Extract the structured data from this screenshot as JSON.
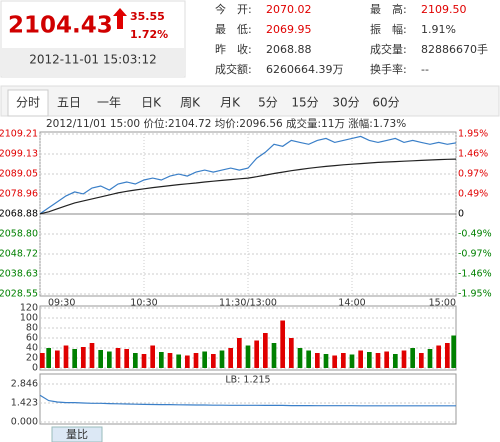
{
  "quote": {
    "price": "2104.43",
    "change": "35.55",
    "change_pct": "1.72%",
    "time": "2012-11-01 15:03:12",
    "stats": [
      {
        "label": "今　开:",
        "value": "2070.02",
        "color": "#e00000"
      },
      {
        "label": "最　高:",
        "value": "2109.50",
        "color": "#e00000"
      },
      {
        "label": "最　低:",
        "value": "2069.95",
        "color": "#e00000"
      },
      {
        "label": "振　幅:",
        "value": "1.91%",
        "color": "#333333"
      },
      {
        "label": "昨　收:",
        "value": "2068.88",
        "color": "#333333"
      },
      {
        "label": "成交量:",
        "value": "82886670手",
        "color": "#333333"
      },
      {
        "label": "成交额:",
        "value": "6260664.39万",
        "color": "#333333"
      },
      {
        "label": "换手率:",
        "value": "--",
        "color": "#333333"
      }
    ]
  },
  "tabs": [
    "分时",
    "五日",
    "一年",
    "日K",
    "周K",
    "月K",
    "5分",
    "15分",
    "30分",
    "60分"
  ],
  "info": "2012/11/01 15:00  价位:2104.72  均价:2096.56  成交量:11万  涨幅:1.73%",
  "bottom_tab": "量比",
  "chart_data": [
    {
      "type": "line",
      "reference": 2068.88,
      "x": [
        0,
        5,
        10,
        15,
        20,
        25,
        30,
        35,
        40,
        45,
        50,
        55,
        60,
        65,
        70,
        75,
        80,
        85,
        90,
        95,
        100,
        105,
        110,
        115,
        120,
        125,
        130,
        135,
        140,
        145,
        150,
        155,
        160,
        165,
        170,
        175,
        180,
        185,
        190,
        195,
        200,
        205,
        210,
        215,
        220,
        225,
        230,
        235,
        240
      ],
      "xlim": [
        0,
        240
      ],
      "xticks": [
        {
          "value": 0,
          "label": "09:30"
        },
        {
          "value": 60,
          "label": "10:30"
        },
        {
          "value": 120,
          "label": "11:30/13:00"
        },
        {
          "value": 180,
          "label": "14:00"
        },
        {
          "value": 240,
          "label": "15:00"
        }
      ],
      "ylim": [
        2028.55,
        2109.21
      ],
      "yticks": [
        2109.21,
        2099.13,
        2089.05,
        2078.96,
        2068.88,
        {
          "value": 2058.8,
          "label": "2058.80"
        },
        2048.72,
        2038.63,
        2028.55
      ],
      "y2lim": [
        -1.95,
        1.95
      ],
      "y2ticks": [
        {
          "value": 1.95,
          "label": "1.95%"
        },
        {
          "value": 1.46,
          "label": "1.46%"
        },
        {
          "value": 0.97,
          "label": "0.97%"
        },
        {
          "value": 0.49,
          "label": "0.49%"
        },
        0,
        {
          "value": -0.49,
          "label": "-0.49%"
        },
        {
          "value": -0.97,
          "label": "-0.97%"
        },
        {
          "value": -1.46,
          "label": "-1.46%"
        },
        {
          "value": -1.95,
          "label": "-1.95%"
        }
      ],
      "series": [
        {
          "color": "#3a7fc8",
          "values": [
            2069,
            2072,
            2075,
            2078,
            2080,
            2079,
            2082,
            2083,
            2081,
            2084,
            2085,
            2084,
            2086,
            2087,
            2086,
            2088,
            2089,
            2088,
            2090,
            2091,
            2090,
            2091,
            2092,
            2091,
            2092,
            2097,
            2100,
            2104,
            2103,
            2106,
            2105,
            2104,
            2106,
            2107,
            2105,
            2106,
            2107,
            2108,
            2106,
            2105,
            2106,
            2107,
            2105,
            2106,
            2105,
            2104,
            2105,
            2104,
            2104.72
          ]
        },
        {
          "color": "#222222",
          "values": [
            2069,
            2070,
            2071.5,
            2073,
            2074.5,
            2075.5,
            2076.5,
            2077.5,
            2078.5,
            2079.5,
            2080.3,
            2081,
            2081.6,
            2082.2,
            2082.7,
            2083.2,
            2083.7,
            2084.1,
            2084.5,
            2085,
            2085.4,
            2085.8,
            2086.2,
            2086.6,
            2087,
            2087.7,
            2088.5,
            2089.3,
            2090,
            2090.7,
            2091.3,
            2091.9,
            2092.4,
            2092.9,
            2093.3,
            2093.7,
            2094,
            2094.3,
            2094.6,
            2094.9,
            2095.1,
            2095.3,
            2095.5,
            2095.7,
            2095.9,
            2096.1,
            2096.3,
            2096.45,
            2096.56
          ]
        }
      ]
    },
    {
      "type": "bar",
      "x": [
        0,
        5,
        10,
        15,
        20,
        25,
        30,
        35,
        40,
        45,
        50,
        55,
        60,
        65,
        70,
        75,
        80,
        85,
        90,
        95,
        100,
        105,
        110,
        115,
        120,
        125,
        130,
        135,
        140,
        145,
        150,
        155,
        160,
        165,
        170,
        175,
        180,
        185,
        190,
        195,
        200,
        205,
        210,
        215,
        220,
        225,
        230,
        235,
        240
      ],
      "xlim": [
        0,
        240
      ],
      "ylim": [
        0,
        120
      ],
      "yticks": [
        0,
        20,
        40,
        60,
        80,
        100,
        120
      ],
      "values": [
        30,
        40,
        35,
        45,
        38,
        42,
        50,
        36,
        33,
        40,
        38,
        30,
        28,
        45,
        32,
        30,
        27,
        25,
        30,
        33,
        28,
        35,
        40,
        60,
        45,
        55,
        70,
        50,
        95,
        60,
        40,
        35,
        30,
        28,
        25,
        30,
        27,
        35,
        32,
        30,
        33,
        28,
        35,
        40,
        30,
        38,
        45,
        50,
        65
      ],
      "colors": [
        "#e00000",
        "#008000",
        "#e00000",
        "#e00000",
        "#008000",
        "#e00000",
        "#e00000",
        "#008000",
        "#008000",
        "#e00000",
        "#e00000",
        "#008000",
        "#e00000",
        "#e00000",
        "#008000",
        "#e00000",
        "#008000",
        "#e00000",
        "#e00000",
        "#008000",
        "#e00000",
        "#008000",
        "#e00000",
        "#e00000",
        "#008000",
        "#e00000",
        "#e00000",
        "#008000",
        "#e00000",
        "#e00000",
        "#008000",
        "#008000",
        "#e00000",
        "#008000",
        "#e00000",
        "#e00000",
        "#008000",
        "#e00000",
        "#008000",
        "#e00000",
        "#e00000",
        "#008000",
        "#e00000",
        "#008000",
        "#e00000",
        "#008000",
        "#e00000",
        "#e00000",
        "#008000"
      ]
    },
    {
      "type": "line",
      "title": "LB: 1.215",
      "x": [
        0,
        5,
        10,
        15,
        20,
        25,
        30,
        35,
        40,
        45,
        50,
        55,
        60,
        65,
        70,
        75,
        80,
        85,
        90,
        95,
        100,
        105,
        110,
        115,
        120,
        125,
        130,
        135,
        140,
        145,
        150,
        155,
        160,
        165,
        170,
        175,
        180,
        185,
        190,
        195,
        200,
        205,
        210,
        215,
        220,
        225,
        230,
        235,
        240
      ],
      "xlim": [
        0,
        240
      ],
      "ylim": [
        0,
        2.846
      ],
      "yticks": [
        2.846,
        1.423,
        {
          "value": 0,
          "label": "0.000"
        }
      ],
      "series": [
        {
          "color": "#3a7fc8",
          "values": [
            2.0,
            1.6,
            1.5,
            1.45,
            1.45,
            1.42,
            1.4,
            1.4,
            1.38,
            1.36,
            1.35,
            1.33,
            1.32,
            1.31,
            1.3,
            1.3,
            1.29,
            1.28,
            1.27,
            1.27,
            1.26,
            1.26,
            1.25,
            1.25,
            1.25,
            1.25,
            1.24,
            1.24,
            1.24,
            1.23,
            1.23,
            1.23,
            1.22,
            1.22,
            1.22,
            1.22,
            1.22,
            1.21,
            1.21,
            1.21,
            1.21,
            1.21,
            1.21,
            1.21,
            1.21,
            1.21,
            1.21,
            1.215,
            1.215
          ]
        }
      ]
    }
  ]
}
